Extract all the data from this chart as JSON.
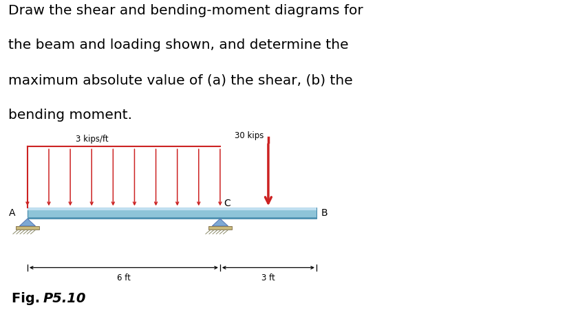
{
  "title_lines": [
    "Draw the shear and bending-moment diagrams for",
    "the beam and loading shown, and determine the",
    "maximum absolute value of (a) the shear, (b) the",
    "bending moment."
  ],
  "bg_color": "#ddeef7",
  "beam_color": "#8ec4d8",
  "beam_highlight": "#c0dff0",
  "beam_shadow": "#5a9ab8",
  "support_color": "#c8b87a",
  "support_hatch_color": "#888866",
  "load_color": "#cc2222",
  "text_color": "#000000",
  "distributed_load_label": "3 kips/ft",
  "point_load_label": "30 kips",
  "label_A": "A",
  "label_B": "B",
  "label_C": "C",
  "dim_left": "6 ft",
  "dim_right": "3 ft",
  "num_dist_arrows": 10
}
